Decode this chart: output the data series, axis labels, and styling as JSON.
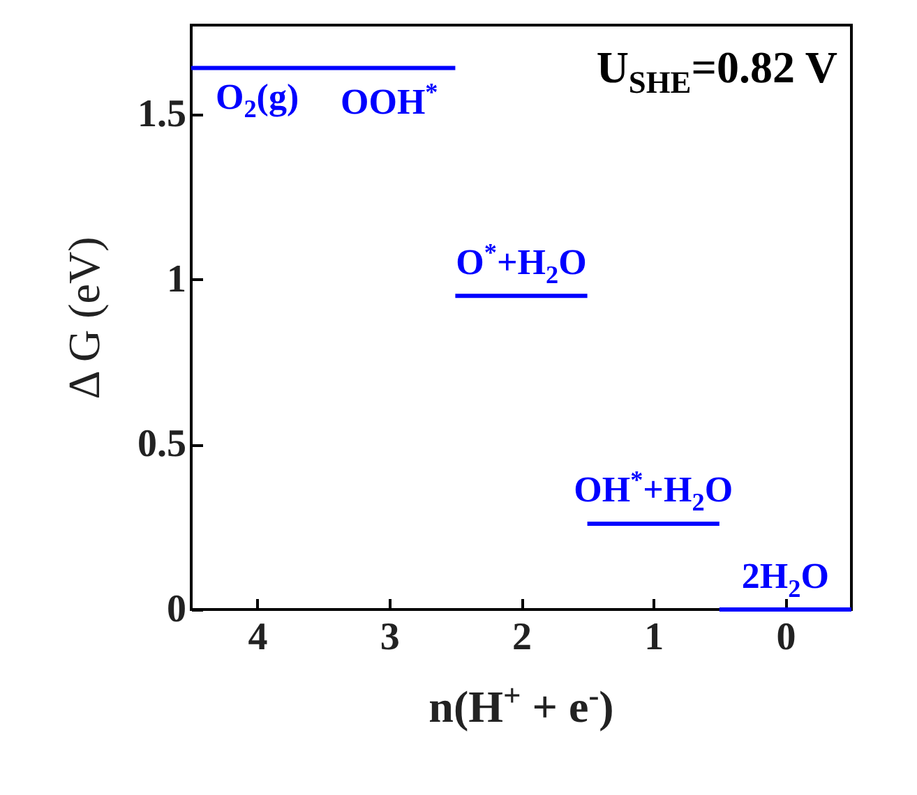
{
  "chart_data": {
    "type": "line",
    "xlabel": "n(H$^{+}$ + e$^{-}$)",
    "ylabel": "Δ G (eV)",
    "xlim": [
      4.5,
      -0.5
    ],
    "xticks": [
      4,
      3,
      2,
      1,
      0
    ],
    "ylim": [
      0,
      1.77
    ],
    "yticks": [
      0,
      0.5,
      1,
      1.5
    ],
    "grid": false,
    "series": [
      {
        "color": "#0000ff",
        "x": [
          4.5,
          2.5
        ],
        "values": [
          1.64,
          1.64
        ]
      },
      {
        "color": "#0000ff",
        "x": [
          2.5,
          1.5
        ],
        "values": [
          0.95,
          0.95
        ]
      },
      {
        "color": "#0000ff",
        "x": [
          1.5,
          0.5
        ],
        "values": [
          0.26,
          0.26
        ]
      },
      {
        "color": "#0000ff",
        "x": [
          0.5,
          -0.5
        ],
        "values": [
          0,
          0
        ]
      }
    ],
    "annotations": [
      {
        "text": "O$_{2}$(g)",
        "x": 4,
        "y": 1.64
      },
      {
        "text": "OOH$^{*}$",
        "x": 3,
        "y": 1.64
      },
      {
        "text": "O$^{*}$+H$_{2}$O",
        "x": 2,
        "y": 0.95
      },
      {
        "text": "OH$^{*}$+H$_{2}$O",
        "x": 1,
        "y": 0.26
      },
      {
        "text": "2H$_{2}$O",
        "x": 0,
        "y": 0
      },
      "U$_{SHE}$=0.82 V"
    ]
  }
}
